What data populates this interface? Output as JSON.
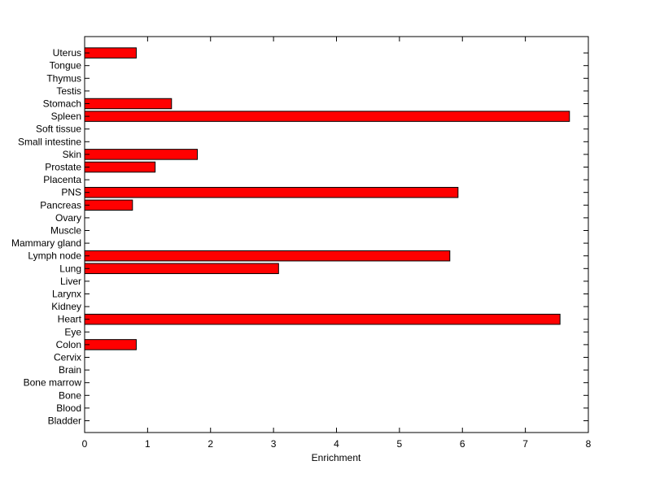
{
  "chart_data": {
    "type": "bar",
    "orientation": "horizontal",
    "categories": [
      "Bladder",
      "Blood",
      "Bone",
      "Bone marrow",
      "Brain",
      "Cervix",
      "Colon",
      "Eye",
      "Heart",
      "Kidney",
      "Larynx",
      "Liver",
      "Lung",
      "Lymph node",
      "Mammary gland",
      "Muscle",
      "Ovary",
      "Pancreas",
      "PNS",
      "Placenta",
      "Prostate",
      "Skin",
      "Small intestine",
      "Soft tissue",
      "Spleen",
      "Stomach",
      "Testis",
      "Thymus",
      "Tongue",
      "Uterus"
    ],
    "values": [
      0,
      0,
      0,
      0,
      0,
      0,
      0.82,
      0,
      7.55,
      0,
      0,
      0,
      3.08,
      5.8,
      0,
      0,
      0,
      0.76,
      5.93,
      0,
      1.12,
      1.79,
      0,
      0,
      7.7,
      1.38,
      0,
      0,
      0,
      0.82
    ],
    "xlabel": "Enrichment",
    "ylabel": "",
    "title": "",
    "xlim": [
      0,
      8
    ],
    "xticks": [
      "0",
      "1",
      "2",
      "3",
      "4",
      "5",
      "6",
      "7",
      "8"
    ],
    "grid": false,
    "colors": {
      "bar_fill": "#ff0000",
      "bar_stroke": "#000000",
      "axis": "#000000"
    }
  }
}
